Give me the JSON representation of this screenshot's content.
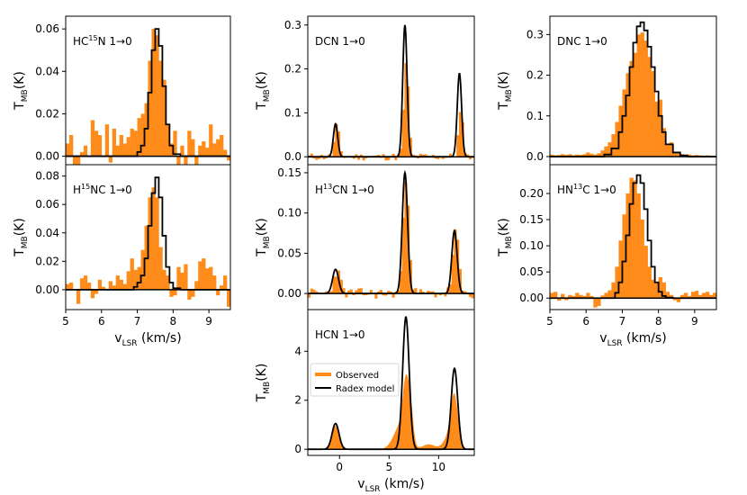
{
  "colors": {
    "observed": "#ff8c1a",
    "model": "#000000"
  },
  "legend": {
    "observed": "Observed",
    "model": "Radex model"
  },
  "chart_data": [
    {
      "id": "hc15n",
      "type": "bar",
      "mode": "hist",
      "label_main": "HC",
      "label_sup": "15",
      "label_rest": "N 1→0",
      "xlim": [
        5,
        9.6
      ],
      "ylim": [
        -0.004,
        0.066
      ],
      "xticks": [],
      "yticks": [
        0.0,
        0.02,
        0.04,
        0.06
      ],
      "ytick_labels": [
        "0.00",
        "0.02",
        "0.04",
        "0.06"
      ],
      "ylabel": "T_MB(K)",
      "xlabel": "",
      "obs_x": [
        5.0,
        5.1,
        5.2,
        5.3,
        5.4,
        5.5,
        5.6,
        5.7,
        5.8,
        5.9,
        6.0,
        6.1,
        6.2,
        6.3,
        6.4,
        6.5,
        6.6,
        6.7,
        6.8,
        6.9,
        7.0,
        7.1,
        7.2,
        7.3,
        7.4,
        7.5,
        7.6,
        7.7,
        7.8,
        7.9,
        8.0,
        8.1,
        8.2,
        8.3,
        8.4,
        8.5,
        8.6,
        8.7,
        8.8,
        8.9,
        9.0,
        9.1,
        9.2,
        9.3,
        9.4,
        9.5
      ],
      "obs_y": [
        0.006,
        0.01,
        -0.005,
        -0.004,
        0.002,
        0.005,
        0.0,
        0.017,
        0.012,
        0.01,
        0.0,
        0.015,
        -0.003,
        0.013,
        0.005,
        0.01,
        0.006,
        0.009,
        0.013,
        0.012,
        0.018,
        0.02,
        0.025,
        0.045,
        0.06,
        0.057,
        0.045,
        0.036,
        0.015,
        0.006,
        0.012,
        -0.004,
        0.005,
        -0.004,
        0.012,
        0.008,
        -0.004,
        0.005,
        0.007,
        0.004,
        0.015,
        0.006,
        0.008,
        0.01,
        0.003,
        -0.002
      ],
      "model_x": [
        5.0,
        6.8,
        7.0,
        7.1,
        7.2,
        7.3,
        7.4,
        7.5,
        7.6,
        7.7,
        7.8,
        7.9,
        8.0,
        8.2,
        9.6
      ],
      "model_y": [
        0,
        0,
        0.002,
        0.005,
        0.013,
        0.03,
        0.05,
        0.06,
        0.052,
        0.033,
        0.015,
        0.005,
        0.001,
        0,
        0
      ]
    },
    {
      "id": "h15nc",
      "type": "bar",
      "mode": "hist",
      "label_main": "H",
      "label_sup": "15",
      "label_rest": "NC 1→0",
      "xlim": [
        5,
        9.6
      ],
      "ylim": [
        -0.014,
        0.088
      ],
      "xticks": [
        5,
        6,
        7,
        8,
        9
      ],
      "xtick_labels": [
        "5",
        "6",
        "7",
        "8",
        "9"
      ],
      "yticks": [
        0.0,
        0.02,
        0.04,
        0.06,
        0.08
      ],
      "ytick_labels": [
        "0.00",
        "0.02",
        "0.04",
        "0.06",
        "0.08"
      ],
      "ylabel": "T_MB(K)",
      "xlabel": "v_LSR (km/s)",
      "obs_x": [
        5.0,
        5.1,
        5.2,
        5.3,
        5.4,
        5.5,
        5.6,
        5.7,
        5.8,
        5.9,
        6.0,
        6.1,
        6.2,
        6.3,
        6.4,
        6.5,
        6.6,
        6.7,
        6.8,
        6.9,
        7.0,
        7.1,
        7.2,
        7.3,
        7.4,
        7.5,
        7.6,
        7.7,
        7.8,
        7.9,
        8.0,
        8.1,
        8.2,
        8.3,
        8.4,
        8.5,
        8.6,
        8.7,
        8.8,
        8.9,
        9.0,
        9.1,
        9.2,
        9.3,
        9.4,
        9.5
      ],
      "obs_y": [
        0.004,
        0.005,
        0.0,
        -0.01,
        0.008,
        0.01,
        0.005,
        -0.006,
        -0.003,
        0.007,
        0.002,
        0.0,
        0.006,
        0.003,
        0.01,
        0.007,
        0.004,
        0.013,
        0.022,
        0.014,
        0.016,
        0.028,
        0.045,
        0.065,
        0.072,
        0.065,
        0.03,
        0.014,
        0.01,
        -0.005,
        -0.004,
        0.016,
        0.012,
        0.018,
        -0.007,
        -0.005,
        0.006,
        0.02,
        0.022,
        0.015,
        0.016,
        0.01,
        -0.004,
        0.003,
        0.01,
        -0.012
      ],
      "model_x": [
        5.0,
        6.7,
        6.9,
        7.0,
        7.1,
        7.2,
        7.3,
        7.4,
        7.5,
        7.6,
        7.7,
        7.8,
        7.9,
        8.0,
        8.2,
        9.6
      ],
      "model_y": [
        0,
        0,
        0.002,
        0.005,
        0.01,
        0.022,
        0.045,
        0.068,
        0.079,
        0.065,
        0.038,
        0.016,
        0.005,
        0.001,
        0,
        0
      ]
    },
    {
      "id": "dcn",
      "type": "bar",
      "mode": "hist",
      "label_main": "DCN 1→0",
      "label_sup": "",
      "label_rest": "",
      "xlim": [
        -3.2,
        13.6
      ],
      "ylim": [
        -0.018,
        0.32
      ],
      "xticks": [],
      "yticks": [
        0.0,
        0.1,
        0.2,
        0.3
      ],
      "ytick_labels": [
        "0.0",
        "0.1",
        "0.2",
        "0.3"
      ],
      "ylabel": "T_MB(K)",
      "xlabel": "",
      "profile": {
        "noise": 0.009,
        "seed": 11,
        "step": 0.25,
        "peaks": [
          {
            "c": -0.4,
            "a": 0.07,
            "w": 0.24
          },
          {
            "c": 6.6,
            "a": 0.22,
            "w": 0.24
          },
          {
            "c": 12.1,
            "a": 0.1,
            "w": 0.24
          }
        ]
      },
      "model_peaks": [
        {
          "c": -0.4,
          "a": 0.075,
          "w": 0.22
        },
        {
          "c": 6.6,
          "a": 0.3,
          "w": 0.22
        },
        {
          "c": 12.1,
          "a": 0.19,
          "w": 0.22
        }
      ]
    },
    {
      "id": "h13cn",
      "type": "bar",
      "mode": "hist",
      "label_main": "H",
      "label_sup": "13",
      "label_rest": "CN 1→0",
      "xlim": [
        -3.2,
        13.6
      ],
      "ylim": [
        -0.02,
        0.16
      ],
      "xticks": [],
      "yticks": [
        0.0,
        0.05,
        0.1,
        0.15
      ],
      "ytick_labels": [
        "0.00",
        "0.05",
        "0.10",
        "0.15"
      ],
      "ylabel": "T_MB(K)",
      "xlabel": "",
      "profile": {
        "noise": 0.007,
        "seed": 23,
        "step": 0.25,
        "peaks": [
          {
            "c": -0.4,
            "a": 0.028,
            "w": 0.35
          },
          {
            "c": 6.6,
            "a": 0.145,
            "w": 0.3
          },
          {
            "c": 11.6,
            "a": 0.077,
            "w": 0.3
          }
        ]
      },
      "model_peaks": [
        {
          "c": -0.4,
          "a": 0.03,
          "w": 0.3
        },
        {
          "c": 6.6,
          "a": 0.15,
          "w": 0.27
        },
        {
          "c": 11.6,
          "a": 0.078,
          "w": 0.27
        }
      ]
    },
    {
      "id": "hcn",
      "type": "area",
      "mode": "fill",
      "label_main": "HCN 1→0",
      "label_sup": "",
      "label_rest": "",
      "xlim": [
        -3.2,
        13.6
      ],
      "ylim": [
        -0.25,
        5.7
      ],
      "xticks": [
        0,
        5,
        10
      ],
      "xtick_labels": [
        "0",
        "5",
        "10"
      ],
      "yticks": [
        0,
        2,
        4
      ],
      "ytick_labels": [
        "0",
        "2",
        "4"
      ],
      "ylabel": "T_MB(K)",
      "xlabel": "v_LSR (km/s)",
      "profile": {
        "noise": 0.0,
        "seed": 5,
        "step": 0.05,
        "peaks": [
          {
            "c": -0.4,
            "a": 0.95,
            "w": 0.35
          },
          {
            "c": 6.2,
            "a": 1.0,
            "w": 0.7
          },
          {
            "c": 6.7,
            "a": 2.1,
            "w": 0.3
          },
          {
            "c": 7.2,
            "a": 1.3,
            "w": 0.25
          },
          {
            "c": 9.0,
            "a": 0.2,
            "w": 0.6
          },
          {
            "c": 11.6,
            "a": 1.8,
            "w": 0.35
          },
          {
            "c": 11.2,
            "a": 0.6,
            "w": 0.6
          }
        ]
      },
      "model_peaks": [
        {
          "c": -0.4,
          "a": 1.05,
          "w": 0.35
        },
        {
          "c": 6.7,
          "a": 5.4,
          "w": 0.33
        },
        {
          "c": 11.6,
          "a": 3.3,
          "w": 0.33
        }
      ]
    },
    {
      "id": "dnc",
      "type": "bar",
      "mode": "hist",
      "label_main": "DNC 1→0",
      "label_sup": "",
      "label_rest": "",
      "xlim": [
        5,
        9.6
      ],
      "ylim": [
        -0.02,
        0.345
      ],
      "xticks": [],
      "yticks": [
        0.0,
        0.1,
        0.2,
        0.3
      ],
      "ytick_labels": [
        "0.0",
        "0.1",
        "0.2",
        "0.3"
      ],
      "ylabel": "T_MB(K)",
      "xlabel": "",
      "obs_x": [
        5.0,
        5.1,
        5.2,
        5.3,
        5.4,
        5.5,
        5.6,
        5.7,
        5.8,
        5.9,
        6.0,
        6.1,
        6.2,
        6.3,
        6.4,
        6.5,
        6.6,
        6.7,
        6.8,
        6.9,
        7.0,
        7.1,
        7.2,
        7.3,
        7.4,
        7.5,
        7.6,
        7.7,
        7.8,
        7.9,
        8.0,
        8.1,
        8.2,
        8.3,
        8.4,
        8.5,
        8.6,
        8.7,
        8.8,
        8.9,
        9.0,
        9.1,
        9.2,
        9.3,
        9.4,
        9.5
      ],
      "obs_y": [
        0.005,
        0.003,
        0.004,
        0.006,
        0.004,
        0.006,
        0.003,
        0.005,
        0.004,
        0.006,
        0.01,
        0.007,
        0.005,
        0.008,
        0.015,
        0.025,
        0.035,
        0.055,
        0.085,
        0.125,
        0.165,
        0.205,
        0.235,
        0.255,
        0.3,
        0.305,
        0.285,
        0.245,
        0.21,
        0.135,
        0.14,
        0.07,
        0.03,
        0.035,
        0.012,
        0.008,
        0.006,
        0.004,
        0.005,
        0.003,
        0.004,
        0.003,
        0.002,
        0.003,
        0.002,
        0.002
      ],
      "model_x": [
        5.0,
        6.3,
        6.5,
        6.7,
        6.9,
        7.0,
        7.1,
        7.2,
        7.3,
        7.4,
        7.5,
        7.6,
        7.7,
        7.8,
        7.9,
        8.0,
        8.1,
        8.2,
        8.4,
        8.6,
        8.8,
        9.6
      ],
      "model_y": [
        0,
        0,
        0.005,
        0.02,
        0.06,
        0.1,
        0.15,
        0.22,
        0.28,
        0.32,
        0.33,
        0.31,
        0.27,
        0.22,
        0.16,
        0.1,
        0.06,
        0.03,
        0.01,
        0.003,
        0,
        0
      ]
    },
    {
      "id": "hn13c",
      "type": "bar",
      "mode": "hist",
      "label_main": "HN",
      "label_sup": "13",
      "label_rest": "C 1→0",
      "xlim": [
        5,
        9.6
      ],
      "ylim": [
        -0.022,
        0.255
      ],
      "xticks": [
        5,
        6,
        7,
        8,
        9
      ],
      "xtick_labels": [
        "5",
        "6",
        "7",
        "8",
        "9"
      ],
      "yticks": [
        0.0,
        0.05,
        0.1,
        0.15,
        0.2
      ],
      "ytick_labels": [
        "0.00",
        "0.05",
        "0.10",
        "0.15",
        "0.20"
      ],
      "ylabel": "T_MB(K)",
      "xlabel": "v_LSR (km/s)",
      "obs_x": [
        5.0,
        5.1,
        5.2,
        5.3,
        5.4,
        5.5,
        5.6,
        5.7,
        5.8,
        5.9,
        6.0,
        6.1,
        6.2,
        6.3,
        6.4,
        6.5,
        6.6,
        6.7,
        6.8,
        6.9,
        7.0,
        7.1,
        7.2,
        7.3,
        7.4,
        7.5,
        7.6,
        7.7,
        7.8,
        7.9,
        8.0,
        8.1,
        8.2,
        8.3,
        8.4,
        8.5,
        8.6,
        8.7,
        8.8,
        8.9,
        9.0,
        9.1,
        9.2,
        9.3,
        9.4,
        9.5
      ],
      "obs_y": [
        0.01,
        0.012,
        -0.005,
        0.008,
        -0.004,
        0.006,
        0.004,
        0.01,
        0.006,
        0.004,
        0.01,
        0.004,
        -0.018,
        -0.015,
        0.005,
        0.01,
        0.015,
        0.03,
        0.06,
        0.11,
        0.16,
        0.2,
        0.23,
        0.225,
        0.2,
        0.15,
        0.1,
        0.06,
        0.035,
        0.03,
        0.04,
        0.03,
        0.012,
        0.006,
        -0.004,
        -0.008,
        0.006,
        0.01,
        0.004,
        0.012,
        0.014,
        0.006,
        0.01,
        0.012,
        0.006,
        0.01
      ],
      "model_x": [
        5.0,
        6.6,
        6.8,
        6.9,
        7.0,
        7.1,
        7.2,
        7.3,
        7.4,
        7.5,
        7.6,
        7.7,
        7.8,
        7.9,
        8.0,
        8.1,
        8.2,
        8.4,
        9.6
      ],
      "model_y": [
        0,
        0,
        0.01,
        0.03,
        0.07,
        0.12,
        0.18,
        0.22,
        0.235,
        0.22,
        0.17,
        0.11,
        0.06,
        0.03,
        0.012,
        0.004,
        0.001,
        0,
        0
      ]
    }
  ]
}
